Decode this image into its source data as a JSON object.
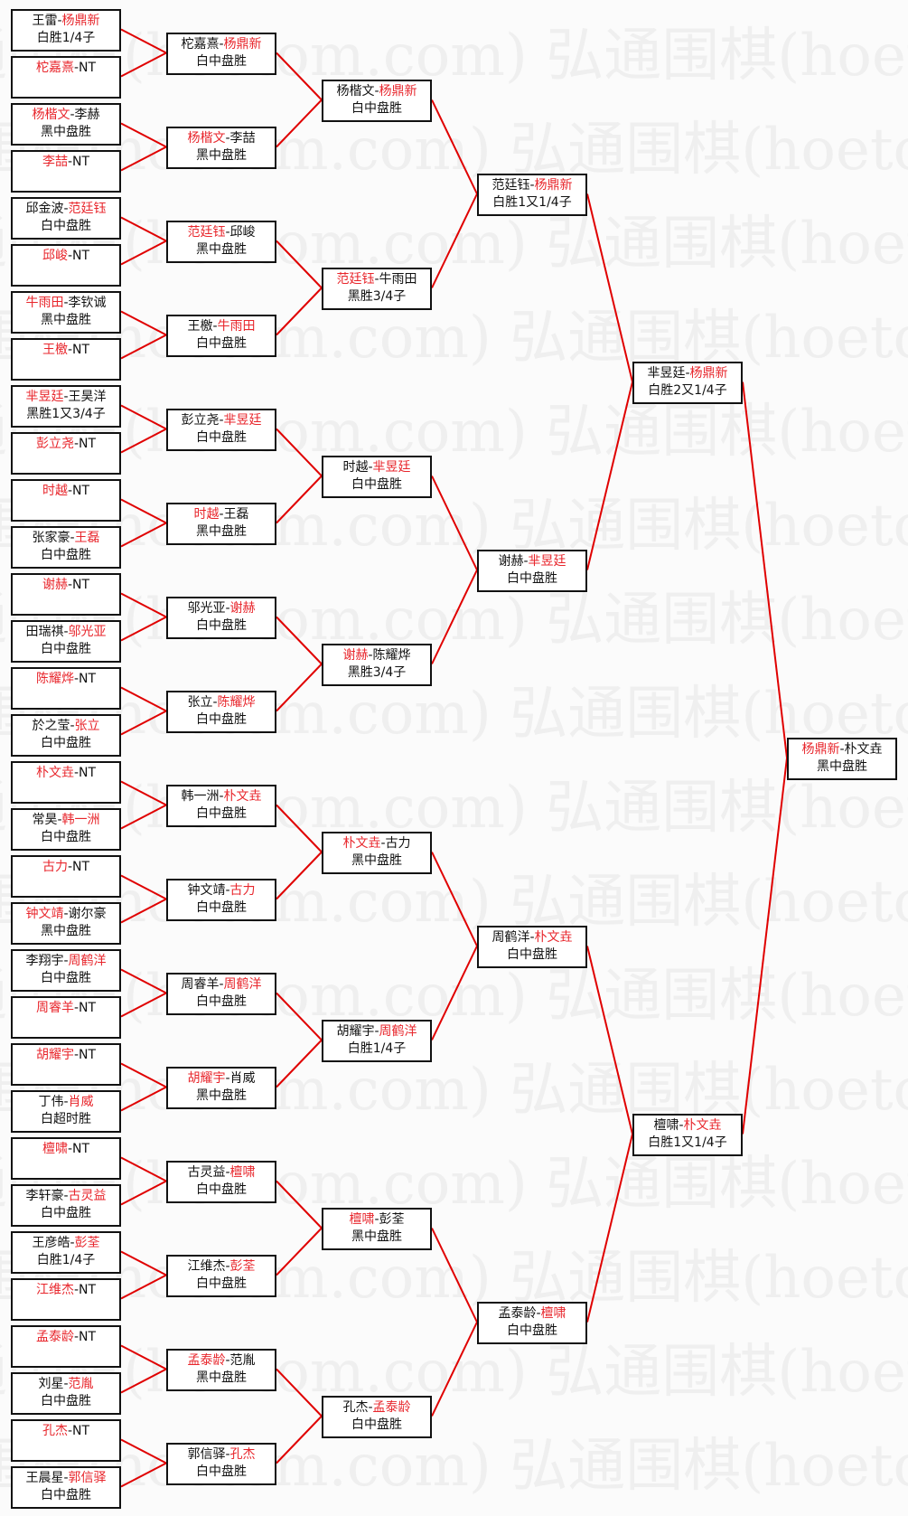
{
  "watermark": "弘通围棋(hoetom.com)",
  "colors": {
    "winner": "#e8262c",
    "lines": "#e00000",
    "border": "#111111"
  },
  "rounds": [
    [
      {
        "p1": "王雷",
        "p2": "杨鼎新",
        "winner": 2,
        "result": "白胜1/4子"
      },
      {
        "p1": "柁嘉熹",
        "p2": "NT",
        "winner": 1,
        "result": ""
      },
      {
        "p1": "杨楷文",
        "p2": "李赫",
        "winner": 1,
        "result": "黑中盘胜"
      },
      {
        "p1": "李喆",
        "p2": "NT",
        "winner": 1,
        "result": ""
      },
      {
        "p1": "邱金波",
        "p2": "范廷钰",
        "winner": 2,
        "result": "白中盘胜"
      },
      {
        "p1": "邱峻",
        "p2": "NT",
        "winner": 1,
        "result": ""
      },
      {
        "p1": "牛雨田",
        "p2": "李钦诚",
        "winner": 1,
        "result": "黑中盘胜"
      },
      {
        "p1": "王檄",
        "p2": "NT",
        "winner": 1,
        "result": ""
      },
      {
        "p1": "芈昱廷",
        "p2": "王昊洋",
        "winner": 1,
        "result": "黑胜1又3/4子"
      },
      {
        "p1": "彭立尧",
        "p2": "NT",
        "winner": 1,
        "result": ""
      },
      {
        "p1": "时越",
        "p2": "NT",
        "winner": 1,
        "result": ""
      },
      {
        "p1": "张家豪",
        "p2": "王磊",
        "winner": 2,
        "result": "白中盘胜"
      },
      {
        "p1": "谢赫",
        "p2": "NT",
        "winner": 1,
        "result": ""
      },
      {
        "p1": "田瑞祺",
        "p2": "邬光亚",
        "winner": 2,
        "result": "白中盘胜"
      },
      {
        "p1": "陈耀烨",
        "p2": "NT",
        "winner": 1,
        "result": ""
      },
      {
        "p1": "於之莹",
        "p2": "张立",
        "winner": 2,
        "result": "白中盘胜"
      },
      {
        "p1": "朴文垚",
        "p2": "NT",
        "winner": 1,
        "result": ""
      },
      {
        "p1": "常昊",
        "p2": "韩一洲",
        "winner": 2,
        "result": "白中盘胜"
      },
      {
        "p1": "古力",
        "p2": "NT",
        "winner": 1,
        "result": ""
      },
      {
        "p1": "钟文靖",
        "p2": "谢尔豪",
        "winner": 1,
        "result": "黑中盘胜"
      },
      {
        "p1": "李翔宇",
        "p2": "周鹤洋",
        "winner": 2,
        "result": "白中盘胜"
      },
      {
        "p1": "周睿羊",
        "p2": "NT",
        "winner": 1,
        "result": ""
      },
      {
        "p1": "胡耀宇",
        "p2": "NT",
        "winner": 1,
        "result": ""
      },
      {
        "p1": "丁伟",
        "p2": "肖威",
        "winner": 2,
        "result": "白超时胜"
      },
      {
        "p1": "檀啸",
        "p2": "NT",
        "winner": 1,
        "result": ""
      },
      {
        "p1": "李轩豪",
        "p2": "古灵益",
        "winner": 2,
        "result": "白中盘胜"
      },
      {
        "p1": "王彦皓",
        "p2": "彭荃",
        "winner": 2,
        "result": "白胜1/4子"
      },
      {
        "p1": "江维杰",
        "p2": "NT",
        "winner": 1,
        "result": ""
      },
      {
        "p1": "孟泰龄",
        "p2": "NT",
        "winner": 1,
        "result": ""
      },
      {
        "p1": "刘星",
        "p2": "范胤",
        "winner": 2,
        "result": "白中盘胜"
      },
      {
        "p1": "孔杰",
        "p2": "NT",
        "winner": 1,
        "result": ""
      },
      {
        "p1": "王晨星",
        "p2": "郭信驿",
        "winner": 2,
        "result": "白中盘胜"
      }
    ],
    [
      {
        "p1": "柁嘉熹",
        "p2": "杨鼎新",
        "winner": 2,
        "result": "白中盘胜"
      },
      {
        "p1": "杨楷文",
        "p2": "李喆",
        "winner": 1,
        "result": "黑中盘胜"
      },
      {
        "p1": "范廷钰",
        "p2": "邱峻",
        "winner": 1,
        "result": "黑中盘胜"
      },
      {
        "p1": "王檄",
        "p2": "牛雨田",
        "winner": 2,
        "result": "白中盘胜"
      },
      {
        "p1": "彭立尧",
        "p2": "芈昱廷",
        "winner": 2,
        "result": "白中盘胜"
      },
      {
        "p1": "时越",
        "p2": "王磊",
        "winner": 1,
        "result": "黑中盘胜"
      },
      {
        "p1": "邬光亚",
        "p2": "谢赫",
        "winner": 2,
        "result": "白中盘胜"
      },
      {
        "p1": "张立",
        "p2": "陈耀烨",
        "winner": 2,
        "result": "白中盘胜"
      },
      {
        "p1": "韩一洲",
        "p2": "朴文垚",
        "winner": 2,
        "result": "白中盘胜"
      },
      {
        "p1": "钟文靖",
        "p2": "古力",
        "winner": 2,
        "result": "白中盘胜"
      },
      {
        "p1": "周睿羊",
        "p2": "周鹤洋",
        "winner": 2,
        "result": "白中盘胜"
      },
      {
        "p1": "胡耀宇",
        "p2": "肖威",
        "winner": 1,
        "result": "黑中盘胜"
      },
      {
        "p1": "古灵益",
        "p2": "檀啸",
        "winner": 2,
        "result": "白中盘胜"
      },
      {
        "p1": "江维杰",
        "p2": "彭荃",
        "winner": 2,
        "result": "白中盘胜"
      },
      {
        "p1": "孟泰龄",
        "p2": "范胤",
        "winner": 1,
        "result": "黑中盘胜"
      },
      {
        "p1": "郭信驿",
        "p2": "孔杰",
        "winner": 2,
        "result": "白中盘胜"
      }
    ],
    [
      {
        "p1": "杨楷文",
        "p2": "杨鼎新",
        "winner": 2,
        "result": "白中盘胜"
      },
      {
        "p1": "范廷钰",
        "p2": "牛雨田",
        "winner": 1,
        "result": "黑胜3/4子"
      },
      {
        "p1": "时越",
        "p2": "芈昱廷",
        "winner": 2,
        "result": "白中盘胜"
      },
      {
        "p1": "谢赫",
        "p2": "陈耀烨",
        "winner": 1,
        "result": "黑胜3/4子"
      },
      {
        "p1": "朴文垚",
        "p2": "古力",
        "winner": 1,
        "result": "黑中盘胜"
      },
      {
        "p1": "胡耀宇",
        "p2": "周鹤洋",
        "winner": 2,
        "result": "白胜1/4子"
      },
      {
        "p1": "檀啸",
        "p2": "彭荃",
        "winner": 1,
        "result": "黑中盘胜"
      },
      {
        "p1": "孔杰",
        "p2": "孟泰龄",
        "winner": 2,
        "result": "白中盘胜"
      }
    ],
    [
      {
        "p1": "范廷钰",
        "p2": "杨鼎新",
        "winner": 2,
        "result": "白胜1又1/4子"
      },
      {
        "p1": "谢赫",
        "p2": "芈昱廷",
        "winner": 2,
        "result": "白中盘胜"
      },
      {
        "p1": "周鹤洋",
        "p2": "朴文垚",
        "winner": 2,
        "result": "白中盘胜"
      },
      {
        "p1": "孟泰龄",
        "p2": "檀啸",
        "winner": 2,
        "result": "白中盘胜"
      }
    ],
    [
      {
        "p1": "芈昱廷",
        "p2": "杨鼎新",
        "winner": 2,
        "result": "白胜2又1/4子"
      },
      {
        "p1": "檀啸",
        "p2": "朴文垚",
        "winner": 2,
        "result": "白胜1又1/4子"
      }
    ],
    [
      {
        "p1": "杨鼎新",
        "p2": "朴文垚",
        "winner": 1,
        "result": "黑中盘胜"
      }
    ]
  ]
}
